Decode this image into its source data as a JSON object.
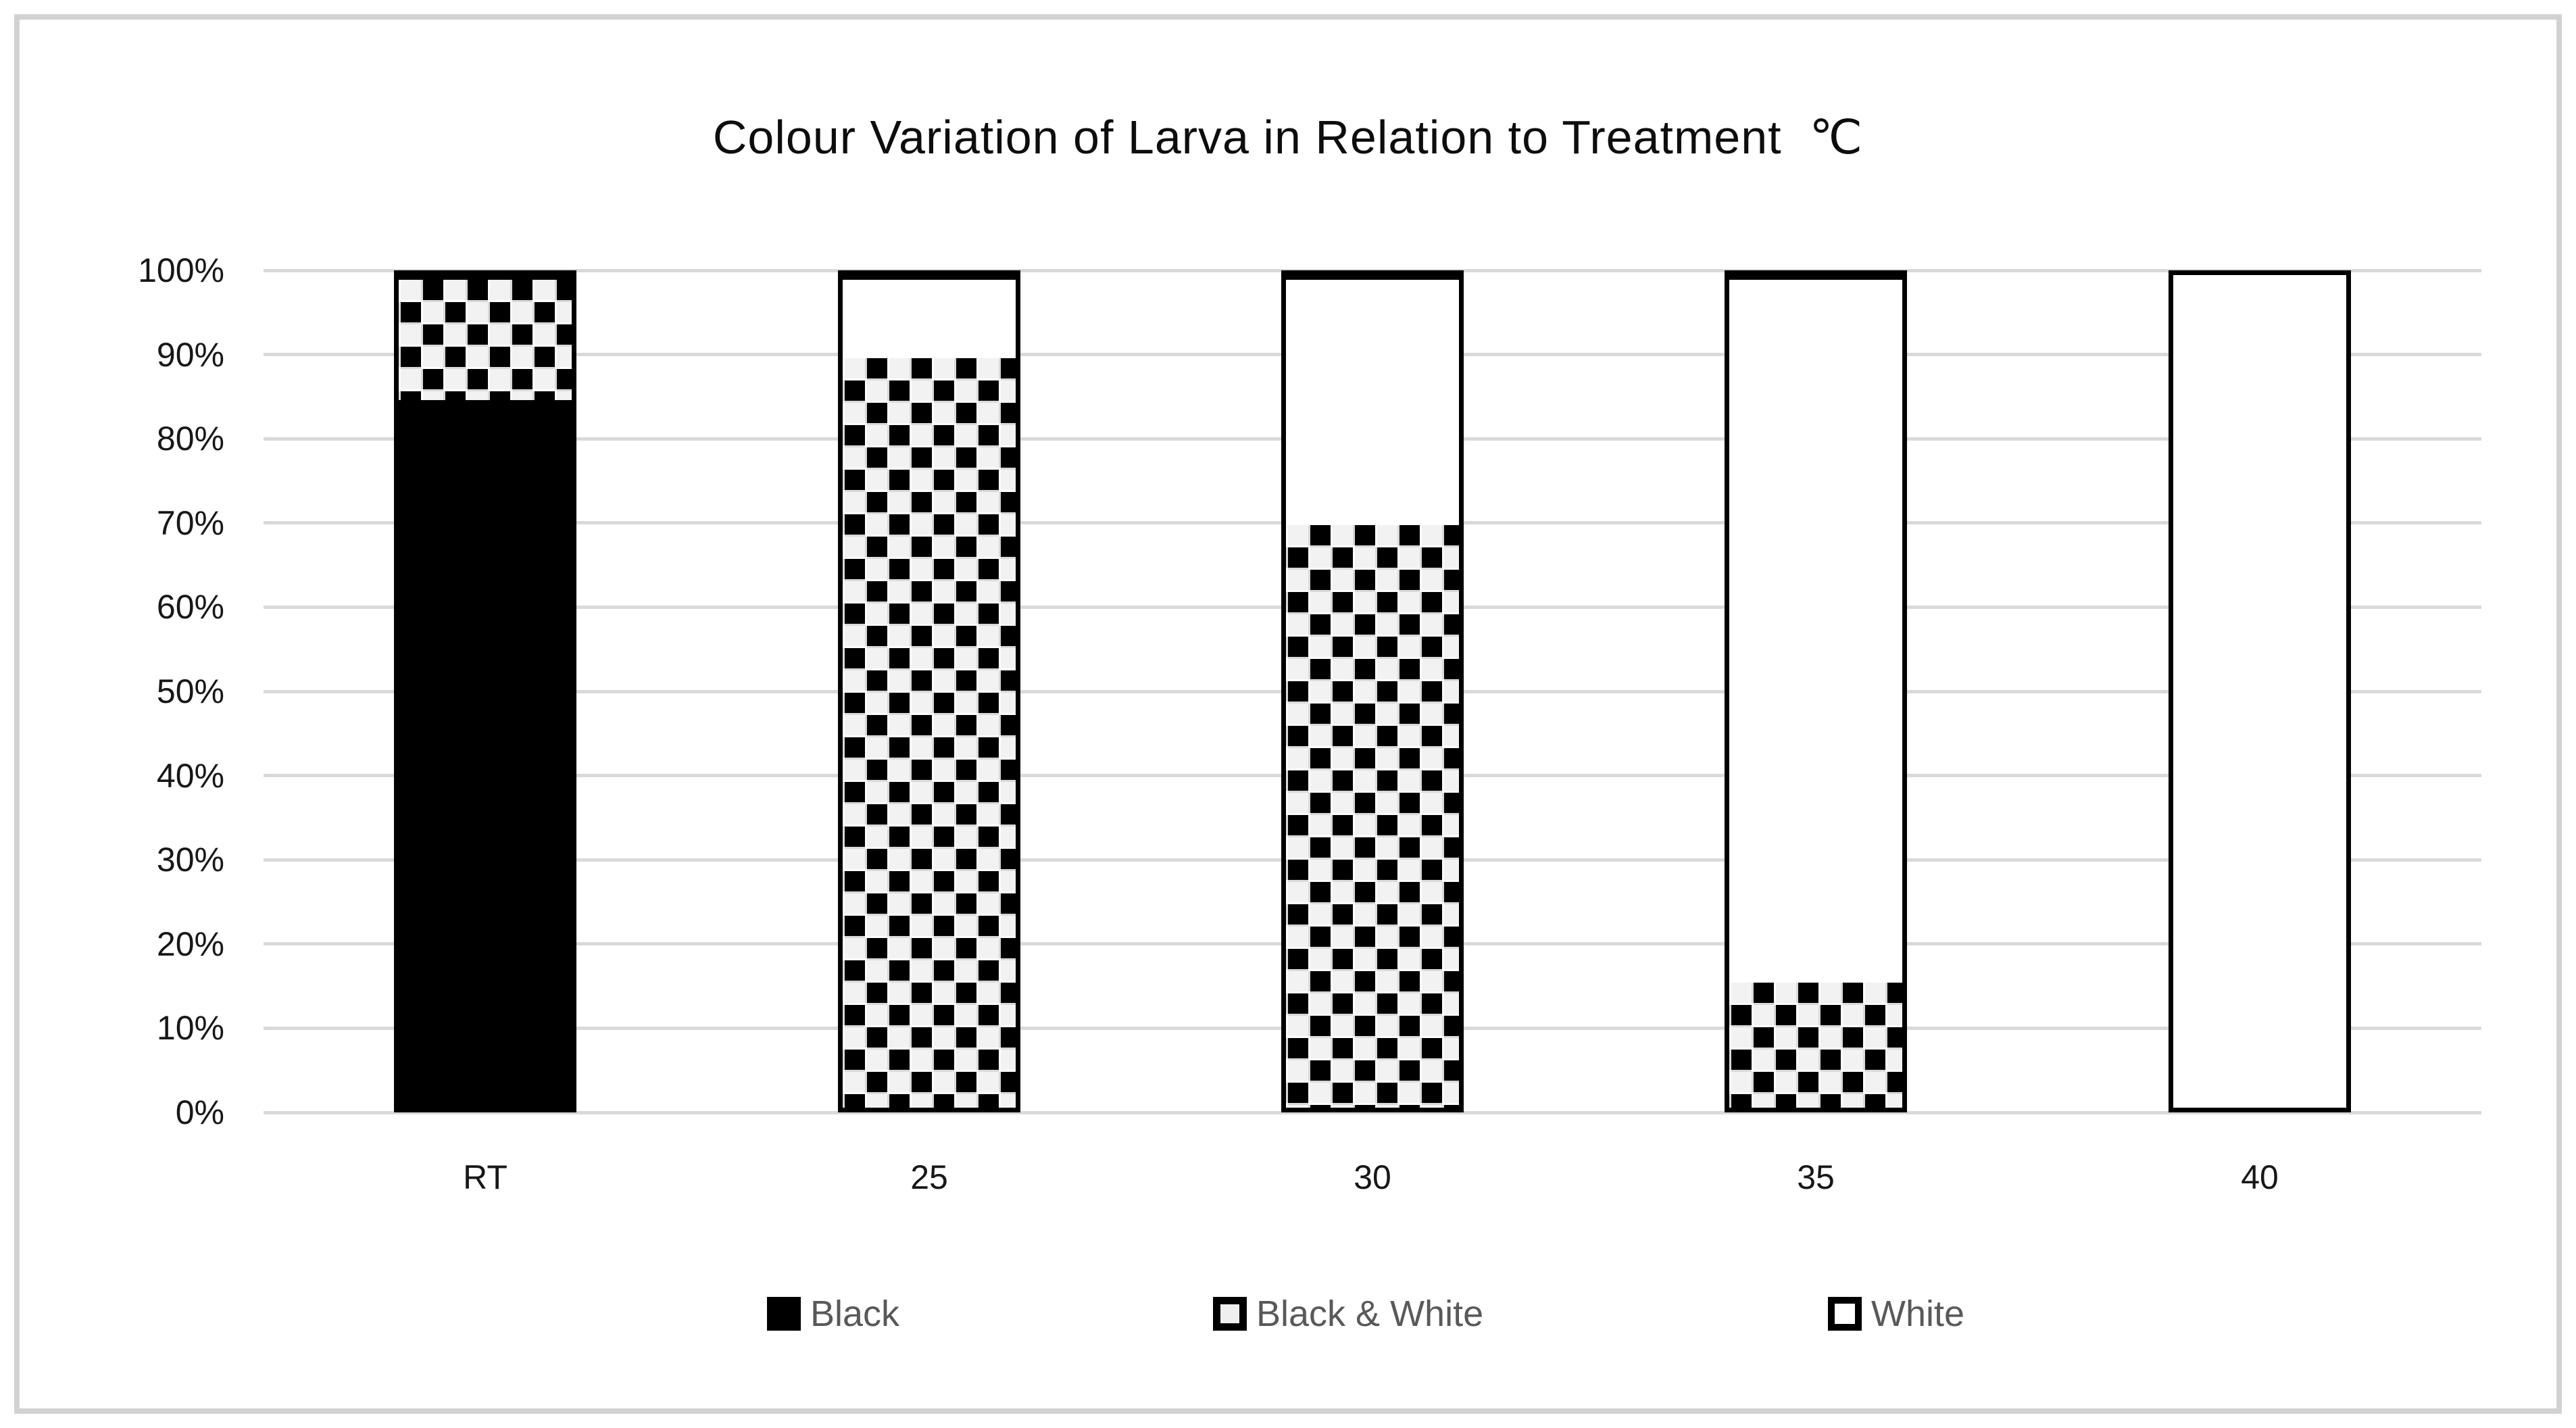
{
  "chart_data": {
    "type": "bar",
    "variant": "100-percent-stacked-column",
    "title": "Colour Variation of Larva in Relation to Treatment  ℃",
    "categories": [
      "RT",
      "25",
      "30",
      "35",
      "40"
    ],
    "series": [
      {
        "name": "Black",
        "pattern": "solid-black",
        "values": [
          85,
          0,
          0,
          0,
          0
        ]
      },
      {
        "name": "Black & White",
        "pattern": "checkerboard",
        "values": [
          15,
          90,
          70,
          15,
          0
        ]
      },
      {
        "name": "White",
        "pattern": "white-outline",
        "values": [
          0,
          10,
          30,
          85,
          100
        ]
      }
    ],
    "y_axis": {
      "ticks": [
        "100%",
        "90%",
        "80%",
        "70%",
        "60%",
        "50%",
        "40%",
        "30%",
        "20%",
        "10%",
        "0%"
      ],
      "min": 0,
      "max": 100,
      "unit": "%"
    },
    "grid": "horizontal",
    "legend_position": "bottom",
    "legend_items": [
      "Black",
      "Black & White",
      "White"
    ],
    "colors": {
      "bar_fill_black": "#000000",
      "bar_fill_white": "#ffffff",
      "bar_border": "#000000",
      "gridline": "#d9d9d9",
      "axis_label_text": "#171717",
      "legend_text": "#595959",
      "title_text": "#0d0d0d",
      "frame_border": "#d2d2d2"
    }
  }
}
